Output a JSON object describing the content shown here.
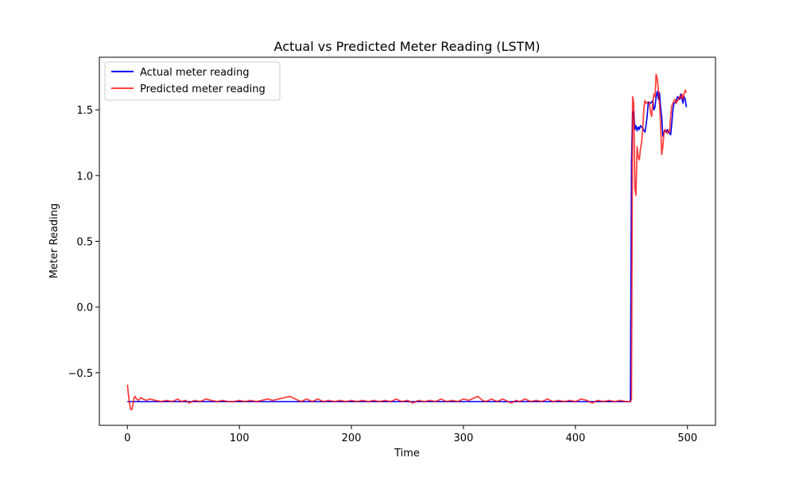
{
  "chart_data": {
    "type": "line",
    "title": "Actual vs Predicted Meter Reading (LSTM)",
    "xlabel": "Time",
    "ylabel": "Meter Reading",
    "xlim": [
      -25,
      525
    ],
    "ylim": [
      -0.9,
      1.9
    ],
    "x_ticks": [
      0,
      100,
      200,
      300,
      400,
      500
    ],
    "x_tick_labels": [
      "0",
      "100",
      "200",
      "300",
      "400",
      "500"
    ],
    "y_ticks": [
      -0.5,
      0.0,
      0.5,
      1.0,
      1.5
    ],
    "y_tick_labels": [
      "−0.5",
      "0.0",
      "0.5",
      "1.0",
      "1.5"
    ],
    "grid": false,
    "legend_position": "upper-left",
    "series": [
      {
        "name": "Actual meter reading",
        "color": "#0000ff",
        "points": [
          [
            0,
            -0.72
          ],
          [
            100,
            -0.72
          ],
          [
            200,
            -0.72
          ],
          [
            300,
            -0.72
          ],
          [
            400,
            -0.72
          ],
          [
            449,
            -0.72
          ],
          [
            450,
            1.1
          ],
          [
            451,
            1.48
          ],
          [
            452,
            1.49
          ],
          [
            453,
            1.35
          ],
          [
            454,
            1.38
          ],
          [
            455,
            1.34
          ],
          [
            456,
            1.37
          ],
          [
            457,
            1.35
          ],
          [
            458,
            1.38
          ],
          [
            460,
            1.36
          ],
          [
            462,
            1.33
          ],
          [
            463,
            1.38
          ],
          [
            464,
            1.45
          ],
          [
            465,
            1.56
          ],
          [
            467,
            1.55
          ],
          [
            469,
            1.57
          ],
          [
            470,
            1.5
          ],
          [
            471,
            1.52
          ],
          [
            472,
            1.6
          ],
          [
            473,
            1.64
          ],
          [
            474,
            1.58
          ],
          [
            475,
            1.63
          ],
          [
            476,
            1.52
          ],
          [
            477,
            1.45
          ],
          [
            478,
            1.3
          ],
          [
            479,
            1.33
          ],
          [
            480,
            1.34
          ],
          [
            481,
            1.33
          ],
          [
            482,
            1.35
          ],
          [
            484,
            1.32
          ],
          [
            485,
            1.31
          ],
          [
            486,
            1.4
          ],
          [
            487,
            1.5
          ],
          [
            488,
            1.55
          ],
          [
            490,
            1.56
          ],
          [
            491,
            1.6
          ],
          [
            493,
            1.58
          ],
          [
            494,
            1.62
          ],
          [
            496,
            1.55
          ],
          [
            497,
            1.6
          ],
          [
            498,
            1.58
          ],
          [
            499,
            1.52
          ]
        ]
      },
      {
        "name": "Predicted meter reading",
        "color": "#ff0000",
        "points": [
          [
            0,
            -0.59
          ],
          [
            1,
            -0.67
          ],
          [
            2,
            -0.74
          ],
          [
            3,
            -0.78
          ],
          [
            4,
            -0.78
          ],
          [
            5,
            -0.74
          ],
          [
            6,
            -0.69
          ],
          [
            7,
            -0.68
          ],
          [
            8,
            -0.7
          ],
          [
            10,
            -0.71
          ],
          [
            12,
            -0.69
          ],
          [
            14,
            -0.7
          ],
          [
            17,
            -0.71
          ],
          [
            20,
            -0.7
          ],
          [
            25,
            -0.71
          ],
          [
            30,
            -0.72
          ],
          [
            35,
            -0.71
          ],
          [
            40,
            -0.72
          ],
          [
            45,
            -0.7
          ],
          [
            48,
            -0.72
          ],
          [
            52,
            -0.71
          ],
          [
            55,
            -0.73
          ],
          [
            60,
            -0.71
          ],
          [
            65,
            -0.72
          ],
          [
            70,
            -0.7
          ],
          [
            75,
            -0.71
          ],
          [
            80,
            -0.72
          ],
          [
            85,
            -0.71
          ],
          [
            90,
            -0.72
          ],
          [
            95,
            -0.72
          ],
          [
            100,
            -0.71
          ],
          [
            105,
            -0.72
          ],
          [
            110,
            -0.71
          ],
          [
            115,
            -0.72
          ],
          [
            120,
            -0.71
          ],
          [
            125,
            -0.7
          ],
          [
            130,
            -0.71
          ],
          [
            135,
            -0.7
          ],
          [
            140,
            -0.69
          ],
          [
            145,
            -0.68
          ],
          [
            150,
            -0.7
          ],
          [
            155,
            -0.72
          ],
          [
            160,
            -0.7
          ],
          [
            165,
            -0.72
          ],
          [
            170,
            -0.7
          ],
          [
            175,
            -0.72
          ],
          [
            180,
            -0.71
          ],
          [
            185,
            -0.72
          ],
          [
            190,
            -0.71
          ],
          [
            195,
            -0.72
          ],
          [
            200,
            -0.71
          ],
          [
            205,
            -0.72
          ],
          [
            210,
            -0.71
          ],
          [
            215,
            -0.72
          ],
          [
            220,
            -0.71
          ],
          [
            225,
            -0.72
          ],
          [
            230,
            -0.71
          ],
          [
            235,
            -0.72
          ],
          [
            240,
            -0.7
          ],
          [
            245,
            -0.72
          ],
          [
            250,
            -0.71
          ],
          [
            255,
            -0.73
          ],
          [
            260,
            -0.71
          ],
          [
            265,
            -0.72
          ],
          [
            270,
            -0.71
          ],
          [
            275,
            -0.72
          ],
          [
            280,
            -0.7
          ],
          [
            285,
            -0.72
          ],
          [
            290,
            -0.71
          ],
          [
            295,
            -0.72
          ],
          [
            300,
            -0.7
          ],
          [
            305,
            -0.71
          ],
          [
            310,
            -0.69
          ],
          [
            313,
            -0.68
          ],
          [
            317,
            -0.71
          ],
          [
            320,
            -0.72
          ],
          [
            325,
            -0.7
          ],
          [
            330,
            -0.72
          ],
          [
            335,
            -0.7
          ],
          [
            340,
            -0.72
          ],
          [
            343,
            -0.73
          ],
          [
            347,
            -0.71
          ],
          [
            350,
            -0.72
          ],
          [
            355,
            -0.7
          ],
          [
            360,
            -0.72
          ],
          [
            365,
            -0.71
          ],
          [
            370,
            -0.72
          ],
          [
            375,
            -0.7
          ],
          [
            380,
            -0.72
          ],
          [
            385,
            -0.71
          ],
          [
            390,
            -0.72
          ],
          [
            395,
            -0.71
          ],
          [
            400,
            -0.72
          ],
          [
            405,
            -0.7
          ],
          [
            410,
            -0.71
          ],
          [
            415,
            -0.73
          ],
          [
            420,
            -0.71
          ],
          [
            425,
            -0.72
          ],
          [
            430,
            -0.71
          ],
          [
            435,
            -0.72
          ],
          [
            440,
            -0.71
          ],
          [
            445,
            -0.72
          ],
          [
            449,
            -0.72
          ],
          [
            450,
            -0.7
          ],
          [
            451,
            1.6
          ],
          [
            452,
            1.55
          ],
          [
            453,
            0.9
          ],
          [
            454,
            0.85
          ],
          [
            455,
            1.22
          ],
          [
            456,
            1.14
          ],
          [
            457,
            1.12
          ],
          [
            458,
            1.2
          ],
          [
            459,
            1.25
          ],
          [
            460,
            1.35
          ],
          [
            461,
            1.5
          ],
          [
            462,
            1.57
          ],
          [
            463,
            1.55
          ],
          [
            465,
            1.56
          ],
          [
            466,
            1.55
          ],
          [
            467,
            1.48
          ],
          [
            468,
            1.45
          ],
          [
            469,
            1.55
          ],
          [
            470,
            1.62
          ],
          [
            471,
            1.6
          ],
          [
            472,
            1.77
          ],
          [
            473,
            1.74
          ],
          [
            474,
            1.65
          ],
          [
            475,
            1.55
          ],
          [
            476,
            1.4
          ],
          [
            477,
            1.16
          ],
          [
            478,
            1.22
          ],
          [
            479,
            1.33
          ],
          [
            480,
            1.35
          ],
          [
            482,
            1.32
          ],
          [
            483,
            1.34
          ],
          [
            484,
            1.33
          ],
          [
            485,
            1.45
          ],
          [
            486,
            1.53
          ],
          [
            487,
            1.55
          ],
          [
            488,
            1.57
          ],
          [
            489,
            1.58
          ],
          [
            490,
            1.55
          ],
          [
            491,
            1.57
          ],
          [
            492,
            1.58
          ],
          [
            493,
            1.6
          ],
          [
            494,
            1.59
          ],
          [
            495,
            1.62
          ],
          [
            496,
            1.58
          ],
          [
            497,
            1.62
          ],
          [
            498,
            1.65
          ],
          [
            499,
            1.63
          ]
        ]
      }
    ]
  }
}
